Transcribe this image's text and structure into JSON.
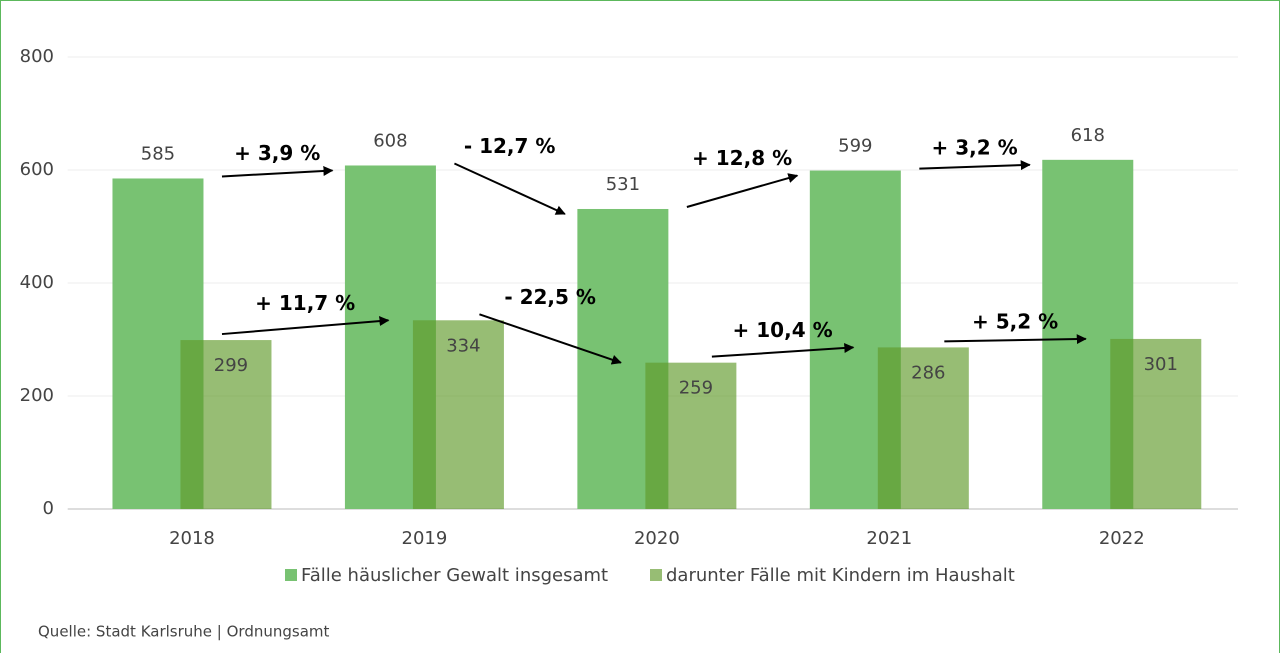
{
  "chart_data": {
    "type": "bar",
    "categories": [
      "2018",
      "2019",
      "2020",
      "2021",
      "2022"
    ],
    "series": [
      {
        "name": "Fälle häuslicher Gewalt insgesamt",
        "color": "#78c272",
        "values": [
          585,
          608,
          531,
          599,
          618
        ],
        "changes": [
          "+ 3,9 %",
          "- 12,7 %",
          "+ 12,8 %",
          "+ 3,2 %"
        ]
      },
      {
        "name": "darunter Fälle mit Kindern im Haushalt",
        "color": "#5f9a2a",
        "values": [
          299,
          334,
          259,
          286,
          301
        ],
        "changes": [
          "+ 11,7 %",
          "- 22,5 %",
          "+ 10,4 %",
          "+ 5,2 %"
        ]
      }
    ],
    "ylim": [
      0,
      800
    ],
    "yticks": [
      0,
      200,
      400,
      600,
      800
    ],
    "grid": true,
    "source": "Quelle: Stadt Karlsruhe | Ordnungsamt"
  }
}
